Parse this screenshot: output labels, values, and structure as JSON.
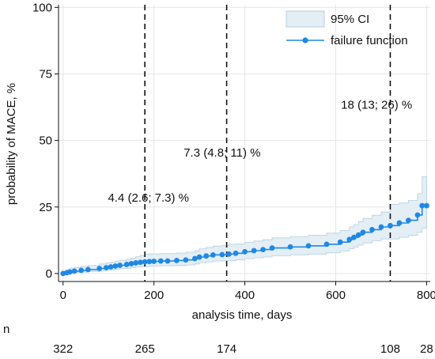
{
  "chart_data": {
    "type": "line",
    "xlabel": "analysis time, days",
    "ylabel": "probability of MACE, %",
    "xlim": [
      -10,
      808
    ],
    "ylim": [
      -3,
      101
    ],
    "xticks": [
      0,
      200,
      400,
      600,
      800
    ],
    "yticks": [
      0,
      25,
      50,
      75,
      100
    ],
    "grid": true,
    "legend": {
      "position": "top-right",
      "entries": [
        "95% CI",
        "failure function"
      ]
    },
    "colors": {
      "line": "#1f88e5",
      "ci_fill": "#e3eef5",
      "ci_edge": "#b7cfe2",
      "grid": "#e6e6e6",
      "vline": "#111111"
    },
    "reference_lines": [
      180,
      360,
      720
    ],
    "annotations": [
      {
        "text": "4.4 (2.6; 7.3) %",
        "x": 188,
        "y": 27
      },
      {
        "text": "7.3 (4.8; 11) %",
        "x": 350,
        "y": 44
      },
      {
        "text": "18 (13; 26) %",
        "x": 690,
        "y": 62
      }
    ],
    "series": [
      {
        "name": "failure function",
        "x": [
          0,
          8,
          15,
          25,
          40,
          55,
          80,
          95,
          105,
          115,
          125,
          140,
          150,
          160,
          170,
          180,
          190,
          200,
          215,
          230,
          250,
          270,
          290,
          300,
          315,
          330,
          350,
          365,
          380,
          400,
          420,
          440,
          460,
          500,
          540,
          580,
          610,
          630,
          640,
          650,
          660,
          680,
          700,
          720,
          740,
          760,
          780,
          790,
          800
        ],
        "y": [
          0,
          0.3,
          0.6,
          0.9,
          1.2,
          1.5,
          1.9,
          2.2,
          2.5,
          2.8,
          3.1,
          3.4,
          3.7,
          4.0,
          4.2,
          4.4,
          4.5,
          4.6,
          4.7,
          4.7,
          4.9,
          5.1,
          5.6,
          6.2,
          6.6,
          7.0,
          7.1,
          7.3,
          7.6,
          8.2,
          8.6,
          9.0,
          9.6,
          10.0,
          10.4,
          11.0,
          11.8,
          12.8,
          13.6,
          14.5,
          15.5,
          16.5,
          17.5,
          18.0,
          19.0,
          20.0,
          22.0,
          25.5,
          25.5
        ]
      }
    ],
    "ci_lower": [
      0,
      0.1,
      0.2,
      0.4,
      0.5,
      0.7,
      0.9,
      1.2,
      1.4,
      1.6,
      1.8,
      2.0,
      2.2,
      2.4,
      2.5,
      2.6,
      2.7,
      2.8,
      2.9,
      2.9,
      3.0,
      3.2,
      3.6,
      4.1,
      4.4,
      4.7,
      4.8,
      4.8,
      5.1,
      5.6,
      5.9,
      6.2,
      6.7,
      7.0,
      7.3,
      7.8,
      8.4,
      9.3,
      10.0,
      10.7,
      11.5,
      12.3,
      13.0,
      13.0,
      13.6,
      14.3,
      15.5,
      17.0,
      17.0
    ],
    "ci_upper": [
      0,
      1.5,
      2.0,
      2.3,
      2.7,
      3.0,
      3.6,
      4.0,
      4.3,
      4.7,
      5.0,
      5.4,
      5.8,
      6.3,
      6.8,
      7.3,
      7.3,
      7.4,
      7.5,
      7.5,
      7.7,
      8.0,
      8.6,
      9.3,
      9.8,
      10.3,
      10.5,
      11.0,
      11.1,
      11.7,
      12.2,
      12.7,
      13.4,
      13.9,
      14.4,
      15.2,
      16.2,
      17.5,
      18.4,
      19.5,
      20.7,
      21.9,
      23.1,
      26.0,
      26.5,
      27.5,
      30.0,
      36.5,
      36.5
    ]
  },
  "risk_table": {
    "label": "n",
    "entries": [
      {
        "x": 0,
        "n": "322"
      },
      {
        "x": 180,
        "n": "265"
      },
      {
        "x": 360,
        "n": "174"
      },
      {
        "x": 720,
        "n": "108"
      },
      {
        "x": 800,
        "n": "28"
      }
    ]
  }
}
